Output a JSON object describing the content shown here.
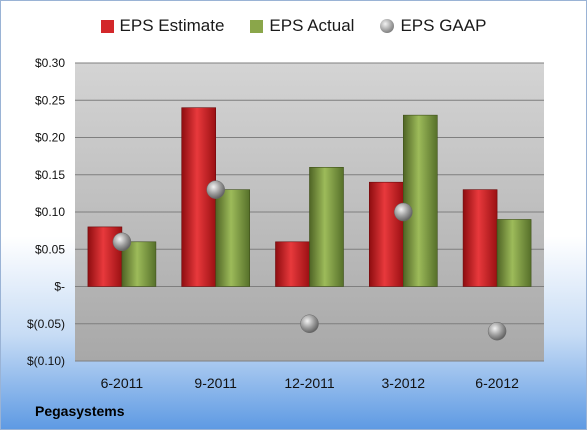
{
  "chart_data": {
    "type": "bar",
    "title": "",
    "xlabel": "",
    "ylabel": "",
    "categories": [
      "6-2011",
      "9-2011",
      "12-2011",
      "3-2012",
      "6-2012"
    ],
    "series": [
      {
        "name": "EPS Estimate",
        "kind": "bar",
        "color": "#c8171b",
        "values": [
          0.08,
          0.24,
          0.06,
          0.14,
          0.13
        ]
      },
      {
        "name": "EPS Actual",
        "kind": "bar",
        "color": "#77943a",
        "values": [
          0.06,
          0.13,
          0.16,
          0.23,
          0.09
        ]
      },
      {
        "name": "EPS GAAP",
        "kind": "scatter",
        "color": "#9a9a9a",
        "values": [
          0.06,
          0.13,
          -0.05,
          0.1,
          -0.06
        ]
      }
    ],
    "ylim": [
      -0.1,
      0.3
    ],
    "yticks": [
      0.3,
      0.25,
      0.2,
      0.15,
      0.1,
      0.05,
      0,
      -0.05,
      -0.1
    ],
    "ytick_labels": [
      "$0.30",
      "$0.25",
      "$0.20",
      "$0.15",
      "$0.10",
      "$0.05",
      "$-",
      "$(0.05)",
      "$(0.10)"
    ],
    "grid": true,
    "legend_position": "top"
  },
  "footer": {
    "company": "Pegasystems"
  }
}
